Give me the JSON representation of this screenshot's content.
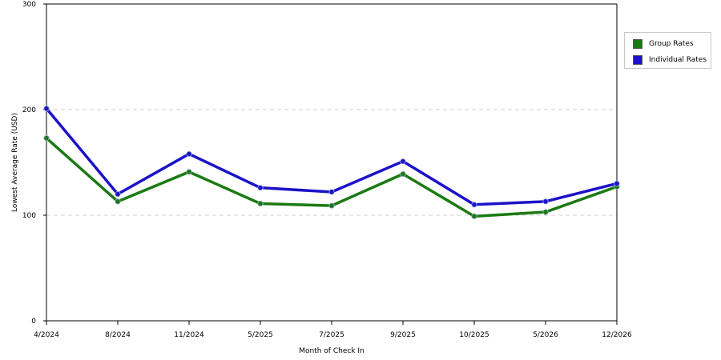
{
  "chart_data": {
    "type": "line",
    "categories": [
      "4/2024",
      "8/2024",
      "11/2024",
      "5/2025",
      "7/2025",
      "9/2025",
      "10/2025",
      "5/2026",
      "12/2026"
    ],
    "series": [
      {
        "name": "Group Rates",
        "color": "#1a7a12",
        "values": [
          173,
          113,
          141,
          111,
          109,
          139,
          99,
          103,
          127
        ]
      },
      {
        "name": "Individual Rates",
        "color": "#1c12c8",
        "values": [
          201,
          120,
          158,
          126,
          122,
          151,
          110,
          113,
          130
        ]
      }
    ],
    "xlabel": "Month of Check In",
    "ylabel": "Lowest Average Rate (USD)",
    "ylim": [
      0,
      300
    ],
    "yticks": [
      0,
      100,
      200,
      300
    ],
    "grid": true,
    "legend_position": "right"
  }
}
